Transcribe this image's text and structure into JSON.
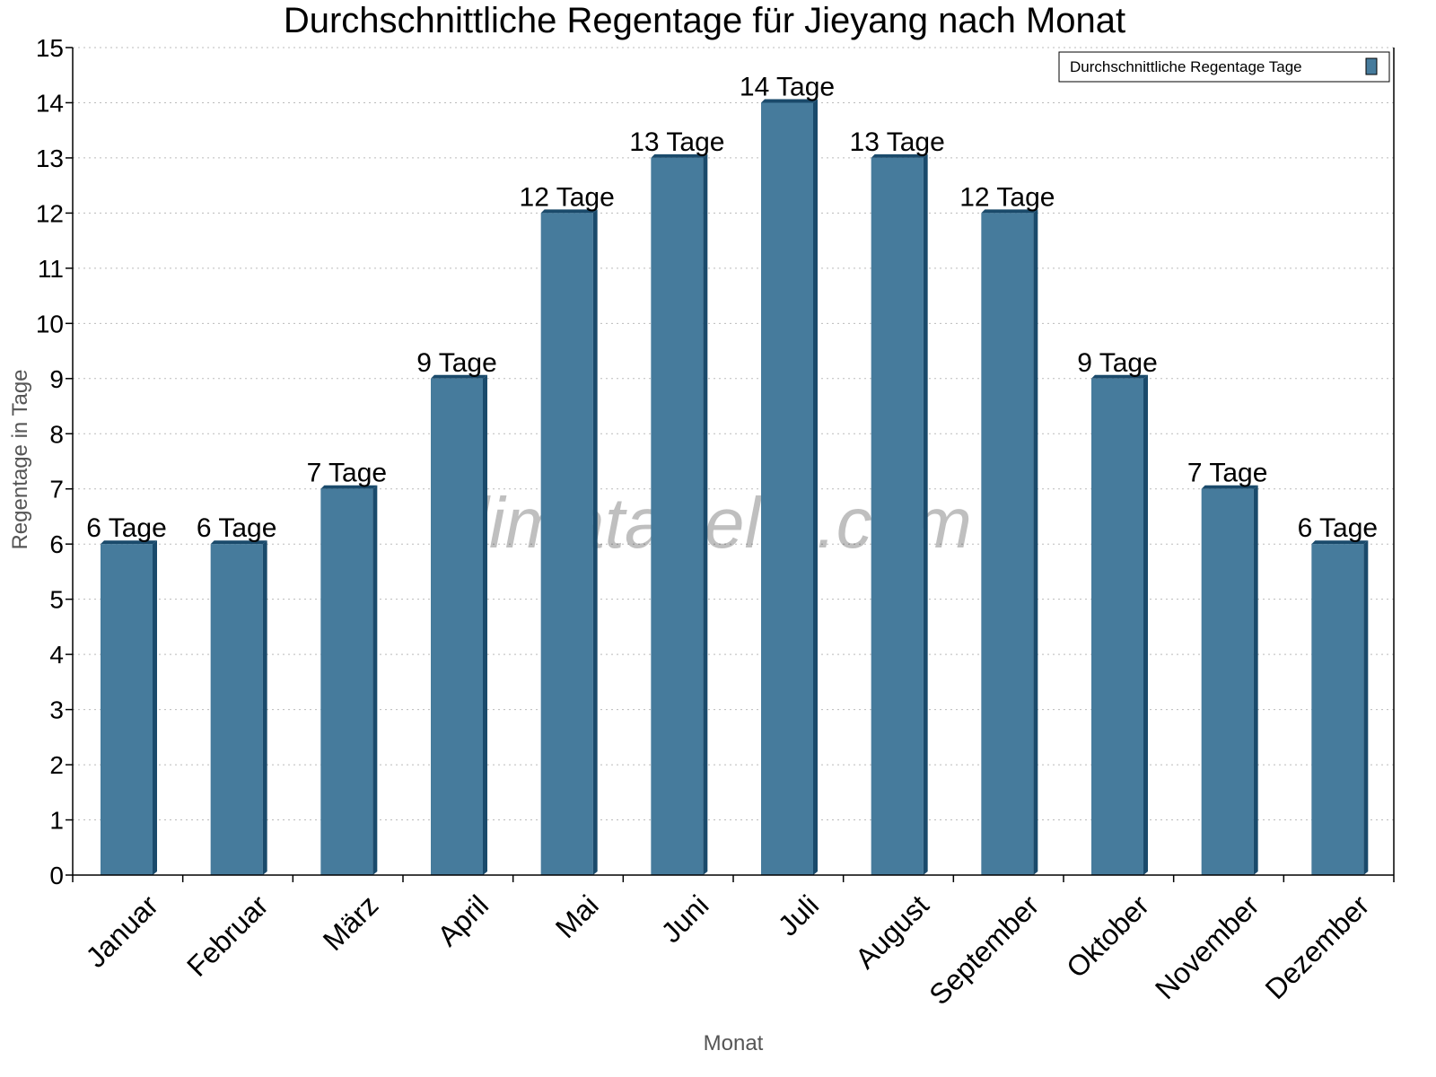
{
  "chart_data": {
    "type": "bar",
    "title": "Durchschnittliche Regentage für Jieyang nach Monat",
    "xlabel": "Monat",
    "ylabel": "Regentage in Tage",
    "categories": [
      "Januar",
      "Februar",
      "März",
      "April",
      "Mai",
      "Juni",
      "Juli",
      "August",
      "September",
      "Oktober",
      "November",
      "Dezember"
    ],
    "series": [
      {
        "name": "Durchschnittliche Regentage Tage",
        "values": [
          6,
          6,
          7,
          9,
          12,
          13,
          14,
          13,
          12,
          9,
          7,
          6
        ],
        "color": "#467b9c",
        "side_color": "#1a4a6b"
      }
    ],
    "data_labels": [
      "6 Tage",
      "6 Tage",
      "7 Tage",
      "9 Tage",
      "12 Tage",
      "13 Tage",
      "14 Tage",
      "13 Tage",
      "12 Tage",
      "9 Tage",
      "7 Tage",
      "6 Tage"
    ],
    "ylim": [
      0,
      15
    ],
    "yticks": [
      0,
      1,
      2,
      3,
      4,
      5,
      6,
      7,
      8,
      9,
      10,
      11,
      12,
      13,
      14,
      15
    ],
    "grid": true,
    "legend_position": "top-right",
    "watermark": "klimatabelle.com"
  }
}
